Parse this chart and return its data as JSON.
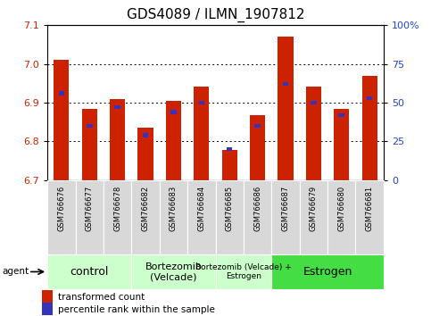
{
  "title": "GDS4089 / ILMN_1907812",
  "samples": [
    "GSM766676",
    "GSM766677",
    "GSM766678",
    "GSM766682",
    "GSM766683",
    "GSM766684",
    "GSM766685",
    "GSM766686",
    "GSM766687",
    "GSM766679",
    "GSM766680",
    "GSM766681"
  ],
  "red_values": [
    7.01,
    6.885,
    6.91,
    6.835,
    6.905,
    6.942,
    6.778,
    6.867,
    7.07,
    6.942,
    6.885,
    6.97
  ],
  "blue_values": [
    56,
    35,
    47,
    29,
    44,
    50,
    20,
    35,
    62,
    50,
    42,
    53
  ],
  "y_min": 6.7,
  "y_max": 7.1,
  "y_ticks": [
    6.7,
    6.8,
    6.9,
    7.0,
    7.1
  ],
  "right_y_ticks": [
    0,
    25,
    50,
    75,
    100
  ],
  "right_y_labels": [
    "0",
    "25",
    "50",
    "75",
    "100%"
  ],
  "groups": [
    {
      "label": "control",
      "start": 0,
      "end": 3,
      "color": "#ccffcc",
      "fontsize": 9
    },
    {
      "label": "Bortezomib\n(Velcade)",
      "start": 3,
      "end": 6,
      "color": "#ccffcc",
      "fontsize": 8
    },
    {
      "label": "Bortezomib (Velcade) +\nEstrogen",
      "start": 6,
      "end": 8,
      "color": "#ccffcc",
      "fontsize": 6.5
    },
    {
      "label": "Estrogen",
      "start": 8,
      "end": 12,
      "color": "#44dd44",
      "fontsize": 9
    }
  ],
  "bar_color": "#cc2200",
  "blue_color": "#3333bb",
  "bar_width": 0.55,
  "agent_label": "agent",
  "legend_red": "transformed count",
  "legend_blue": "percentile rank within the sample",
  "title_fontsize": 11,
  "axis_label_color_red": "#cc2200",
  "axis_label_color_blue": "#2244cc"
}
